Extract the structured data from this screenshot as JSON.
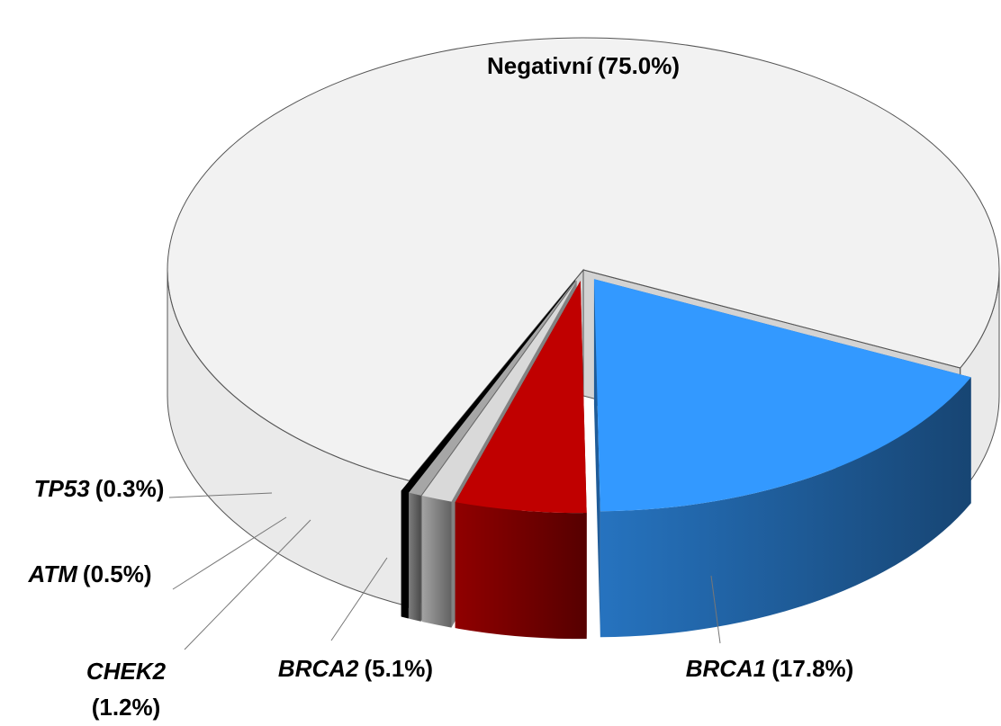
{
  "chart_data": {
    "type": "pie",
    "categories": [
      "Negativní",
      "BRCA1",
      "BRCA2",
      "CHEK2",
      "ATM",
      "TP53"
    ],
    "values": [
      75.0,
      17.8,
      5.1,
      1.2,
      0.5,
      0.3
    ],
    "value_labels": [
      "(75.0%)",
      "(17.8%)",
      "(5.1%)",
      "(1.2%)",
      "(0.5%)",
      "(0.3%)"
    ],
    "colors": [
      "#d9d9d9",
      "#3399ff",
      "#c00000",
      "#d9d9d9",
      "#a6a6a6",
      "#000000"
    ]
  }
}
